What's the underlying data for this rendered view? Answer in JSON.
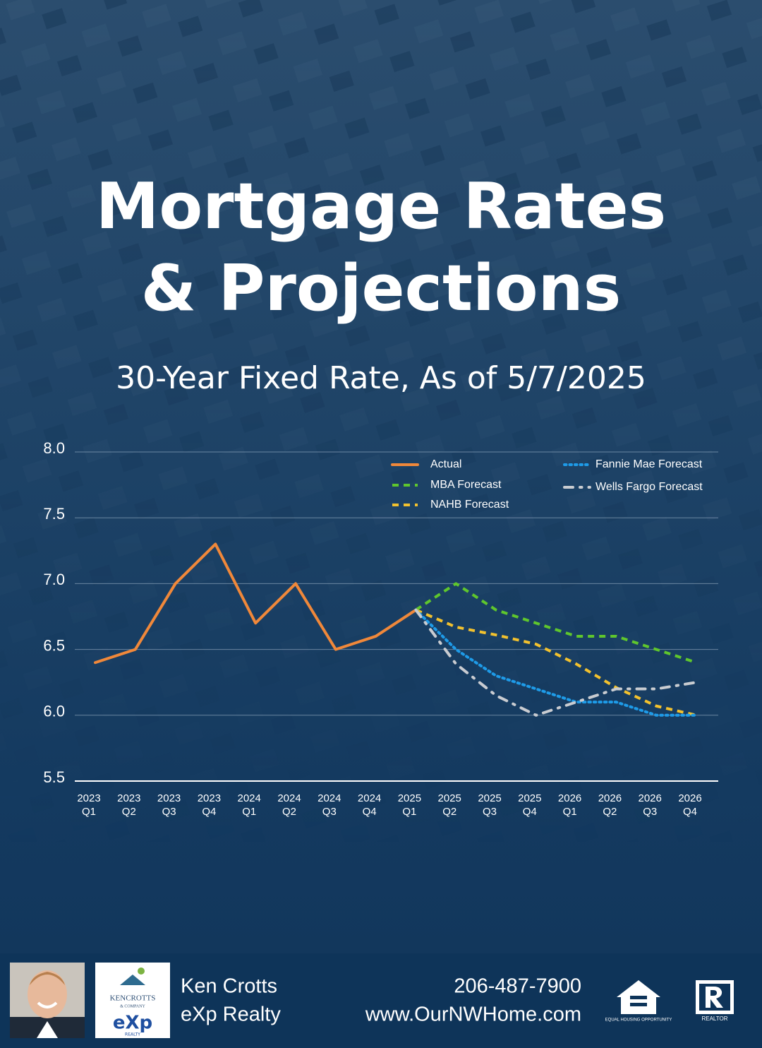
{
  "chart_data": {
    "type": "line",
    "title": [
      "Mortgage Rates",
      "& Projections"
    ],
    "subtitle": "30-Year Fixed Rate, As of 5/7/2025",
    "categories": [
      [
        "2023",
        "Q1"
      ],
      [
        "2023",
        "Q2"
      ],
      [
        "2023",
        "Q3"
      ],
      [
        "2023",
        "Q4"
      ],
      [
        "2024",
        "Q1"
      ],
      [
        "2024",
        "Q2"
      ],
      [
        "2024",
        "Q3"
      ],
      [
        "2024",
        "Q4"
      ],
      [
        "2025",
        "Q1"
      ],
      [
        "2025",
        "Q2"
      ],
      [
        "2025",
        "Q3"
      ],
      [
        "2025",
        "Q4"
      ],
      [
        "2026",
        "Q1"
      ],
      [
        "2026",
        "Q2"
      ],
      [
        "2026",
        "Q3"
      ],
      [
        "2026",
        "Q4"
      ]
    ],
    "series": [
      {
        "name": "Actual",
        "color": "#f0883a",
        "style": "solid",
        "values": [
          6.4,
          6.5,
          7.0,
          7.3,
          6.7,
          7.0,
          6.5,
          6.6,
          6.8,
          null,
          null,
          null,
          null,
          null,
          null,
          null
        ]
      },
      {
        "name": "MBA Forecast",
        "color": "#5fc62d",
        "style": "dashed",
        "values": [
          null,
          null,
          null,
          null,
          null,
          null,
          null,
          null,
          6.8,
          7.0,
          6.8,
          6.7,
          6.6,
          6.6,
          6.5,
          6.4
        ]
      },
      {
        "name": "NAHB Forecast",
        "color": "#f2c12e",
        "style": "dashed",
        "values": [
          null,
          null,
          null,
          null,
          null,
          null,
          null,
          null,
          6.8,
          6.67,
          6.61,
          6.54,
          6.39,
          6.21,
          6.07,
          6.0
        ]
      },
      {
        "name": "Fannie Mae Forecast",
        "color": "#1e9be8",
        "style": "dotted",
        "values": [
          null,
          null,
          null,
          null,
          null,
          null,
          null,
          null,
          6.8,
          6.5,
          6.3,
          6.2,
          6.1,
          6.1,
          6.0,
          6.0
        ]
      },
      {
        "name": "Wells Fargo Forecast",
        "color": "#c9ccd1",
        "style": "dashdot",
        "values": [
          null,
          null,
          null,
          null,
          null,
          null,
          null,
          null,
          6.8,
          6.39,
          6.15,
          6.0,
          6.1,
          6.2,
          6.2,
          6.25
        ]
      }
    ],
    "ylim": [
      5.5,
      8
    ],
    "yticks": [
      5.5,
      {
        "value": 6,
        "label": "6.0"
      },
      6.5,
      {
        "value": 7,
        "label": "7.0"
      },
      7.5,
      {
        "value": 8,
        "label": "8.0"
      }
    ],
    "grid": true,
    "legend": "top-right"
  },
  "footer": {
    "agent_name": "Ken Crotts",
    "brokerage": "eXp Realty",
    "phone": "206-487-7900",
    "website": "www.OurNWHome.com",
    "logo_text": [
      "KENCROTTS",
      "& COMPANY",
      "eXp",
      "REALTY"
    ],
    "badges": [
      "EQUAL HOUSING OPPORTUNITY",
      "REALTOR"
    ]
  }
}
